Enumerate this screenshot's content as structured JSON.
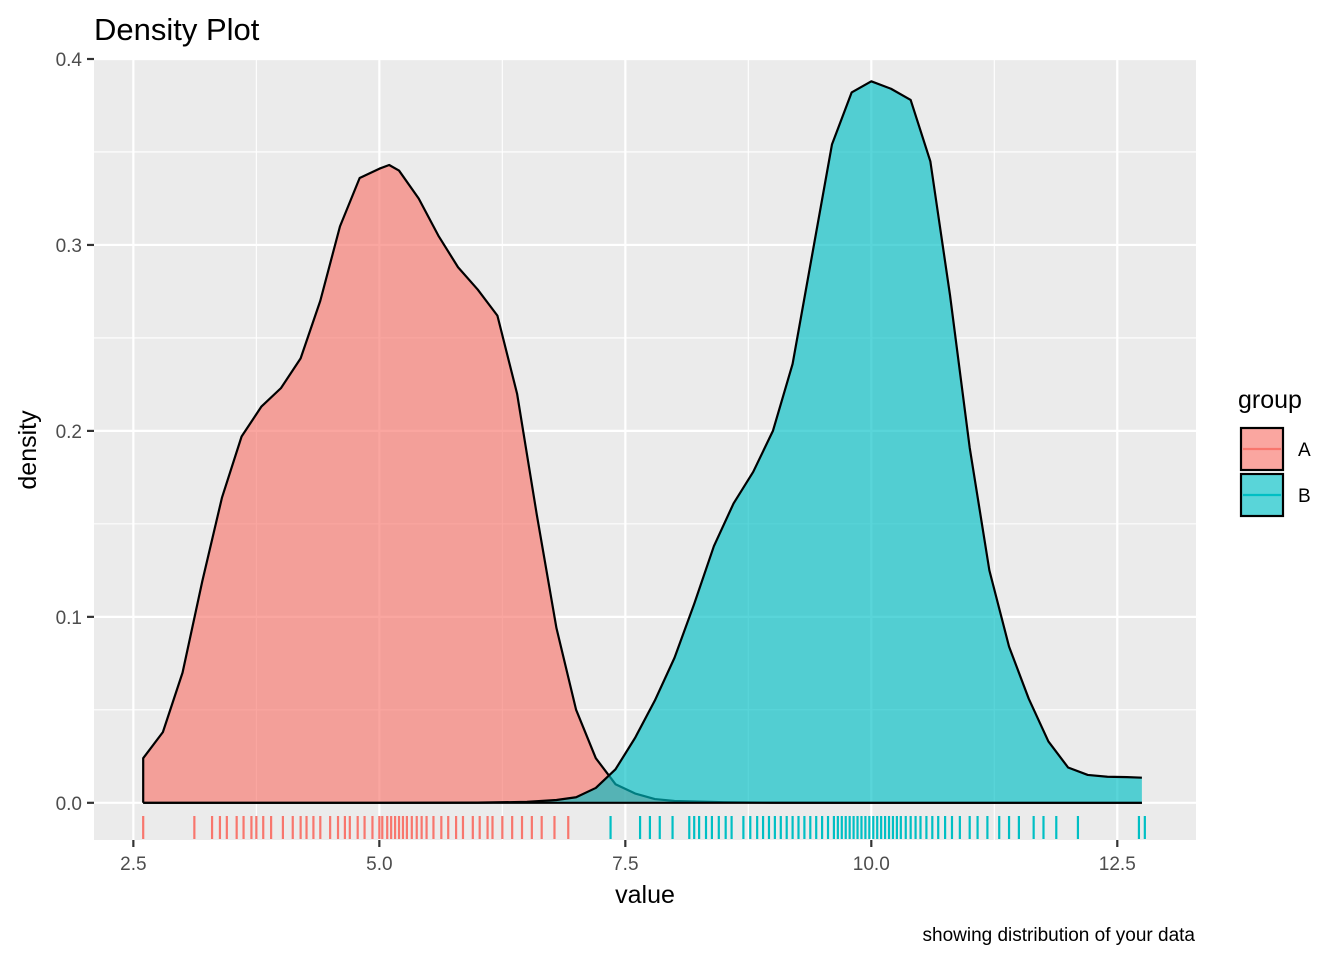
{
  "chart_data": {
    "type": "area",
    "title": "Density Plot",
    "xlabel": "value",
    "ylabel": "density",
    "caption": "showing distribution of your data",
    "xlim": [
      2.1,
      13.3
    ],
    "ylim": [
      -0.02,
      0.4
    ],
    "x_ticks": [
      2.5,
      5.0,
      7.5,
      10.0,
      12.5
    ],
    "x_tick_labels": [
      "2.5",
      "5.0",
      "7.5",
      "10.0",
      "12.5"
    ],
    "y_ticks": [
      0.0,
      0.1,
      0.2,
      0.3,
      0.4
    ],
    "y_tick_labels": [
      "0.0",
      "0.1",
      "0.2",
      "0.3",
      "0.4"
    ],
    "grid": true,
    "legend": {
      "title": "group",
      "position": "right"
    },
    "series": [
      {
        "name": "A",
        "color": "#F8766D",
        "x": [
          2.6,
          2.8,
          3.0,
          3.2,
          3.4,
          3.6,
          3.8,
          4.0,
          4.2,
          4.4,
          4.6,
          4.8,
          5.0,
          5.1,
          5.2,
          5.4,
          5.6,
          5.8,
          6.0,
          6.2,
          6.4,
          6.6,
          6.8,
          7.0,
          7.2,
          7.4,
          7.6,
          7.8,
          8.0,
          8.5,
          9.0,
          10.0,
          11.0,
          12.0,
          12.75
        ],
        "y": [
          0.024,
          0.038,
          0.07,
          0.119,
          0.164,
          0.197,
          0.213,
          0.223,
          0.239,
          0.27,
          0.31,
          0.336,
          0.341,
          0.343,
          0.34,
          0.325,
          0.305,
          0.288,
          0.276,
          0.262,
          0.22,
          0.155,
          0.094,
          0.05,
          0.024,
          0.01,
          0.005,
          0.002,
          0.001,
          0.0003,
          0.0001,
          0.0,
          0.0,
          0.0,
          0.0
        ],
        "rug": [
          2.6,
          3.12,
          3.3,
          3.38,
          3.45,
          3.55,
          3.62,
          3.7,
          3.75,
          3.82,
          3.9,
          4.02,
          4.12,
          4.2,
          4.26,
          4.33,
          4.4,
          4.5,
          4.58,
          4.65,
          4.7,
          4.78,
          4.85,
          4.93,
          5.0,
          5.03,
          5.08,
          5.12,
          5.16,
          5.2,
          5.24,
          5.28,
          5.33,
          5.38,
          5.43,
          5.48,
          5.55,
          5.63,
          5.7,
          5.78,
          5.85,
          5.95,
          6.02,
          6.1,
          6.15,
          6.25,
          6.35,
          6.45,
          6.55,
          6.65,
          6.78,
          6.92
        ]
      },
      {
        "name": "B",
        "color": "#00BFC4",
        "x": [
          2.6,
          5.0,
          6.0,
          6.5,
          6.8,
          7.0,
          7.2,
          7.4,
          7.6,
          7.8,
          8.0,
          8.2,
          8.4,
          8.6,
          8.8,
          9.0,
          9.2,
          9.4,
          9.6,
          9.8,
          10.0,
          10.2,
          10.4,
          10.6,
          10.8,
          11.0,
          11.2,
          11.4,
          11.6,
          11.8,
          12.0,
          12.2,
          12.4,
          12.6,
          12.75
        ],
        "y": [
          0.0,
          0.0,
          0.0001,
          0.0005,
          0.0015,
          0.003,
          0.008,
          0.018,
          0.035,
          0.055,
          0.078,
          0.107,
          0.138,
          0.161,
          0.178,
          0.2,
          0.236,
          0.295,
          0.354,
          0.382,
          0.388,
          0.384,
          0.378,
          0.345,
          0.273,
          0.191,
          0.125,
          0.084,
          0.056,
          0.033,
          0.019,
          0.015,
          0.014,
          0.0138,
          0.0135
        ],
        "rug": [
          7.35,
          7.65,
          7.75,
          7.85,
          7.98,
          8.15,
          8.2,
          8.25,
          8.32,
          8.38,
          8.45,
          8.52,
          8.58,
          8.7,
          8.77,
          8.84,
          8.9,
          8.96,
          9.02,
          9.08,
          9.14,
          9.2,
          9.26,
          9.32,
          9.38,
          9.44,
          9.5,
          9.56,
          9.62,
          9.66,
          9.7,
          9.74,
          9.78,
          9.82,
          9.86,
          9.9,
          9.94,
          9.98,
          10.02,
          10.06,
          10.1,
          10.14,
          10.18,
          10.22,
          10.26,
          10.3,
          10.35,
          10.4,
          10.45,
          10.5,
          10.56,
          10.62,
          10.68,
          10.75,
          10.82,
          10.9,
          11.0,
          11.08,
          11.18,
          11.3,
          11.4,
          11.5,
          11.65,
          11.75,
          11.88,
          12.1,
          12.72,
          12.78
        ]
      }
    ]
  }
}
